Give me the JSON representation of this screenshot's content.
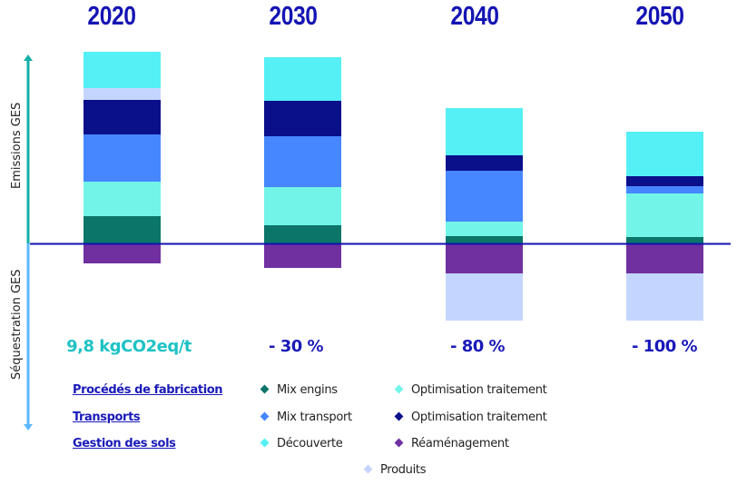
{
  "chart_data": {
    "type": "bar",
    "stacked": true,
    "categories": [
      "2020",
      "2030",
      "2040",
      "2050"
    ],
    "annotations": [
      "9,8 kgCO2eq/t",
      "- 30 %",
      "- 80 %",
      "- 100 %"
    ],
    "ylabel_positive": "Emissions GES",
    "ylabel_negative": "Séquestration GES",
    "ylim": [
      -90,
      215
    ],
    "grid": false,
    "legend_placement": "bottom",
    "legend_groups": [
      {
        "label": "Procédés de fabrication",
        "items": [
          0,
          1
        ]
      },
      {
        "label": "Transports",
        "items": [
          2,
          3
        ]
      },
      {
        "label": "Gestion des sols",
        "items": [
          5,
          6
        ]
      },
      {
        "label": "",
        "items": [
          4
        ]
      }
    ],
    "series": [
      {
        "name": "Mix engins",
        "color": "#0B7569",
        "values": [
          30,
          20,
          8,
          7
        ]
      },
      {
        "name": "Optimisation traitement",
        "color": "#72F5E8",
        "values": [
          38,
          42,
          16,
          48
        ]
      },
      {
        "name": "Mix transport",
        "color": "#4687FF",
        "values": [
          52,
          56,
          56,
          8
        ]
      },
      {
        "name": "Optimisation traitement",
        "color": "#0A0F8A",
        "values": [
          38,
          39,
          17,
          11
        ]
      },
      {
        "name": "Produits",
        "color": "#C4D6FF",
        "values": [
          13,
          0,
          -52,
          -52
        ]
      },
      {
        "name": "Découverte",
        "color": "#55F0F5",
        "values": [
          40,
          48,
          52,
          49
        ]
      },
      {
        "name": "Réaménagement",
        "color": "#7030A0",
        "values": [
          -22,
          -27,
          -33,
          -33
        ]
      }
    ]
  }
}
